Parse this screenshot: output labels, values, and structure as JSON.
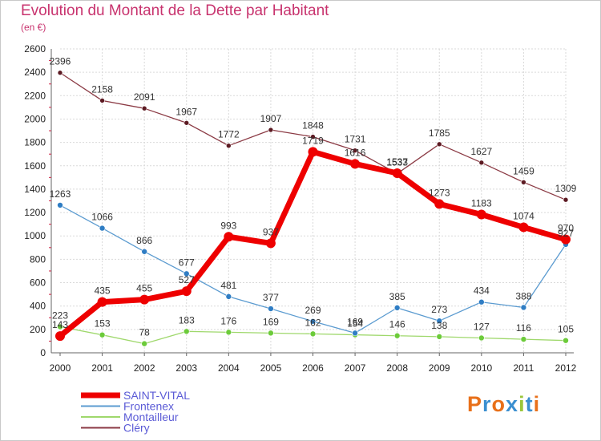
{
  "title": "Evolution du Montant de la Dette par Habitant",
  "unit_label": "(en €)",
  "logo": {
    "text": "Proxiti",
    "letter_colors": [
      "#e8701a",
      "#3b8fd0",
      "#e8701a",
      "#3b8fd0",
      "#9bc63a",
      "#3b8fd0",
      "#e8701a"
    ]
  },
  "colors": {
    "title": "#c8336e",
    "grid": "#d9d9d9",
    "axis": "#666666"
  },
  "chart_data": {
    "type": "line",
    "title": "Evolution du Montant de la Dette par Habitant",
    "ylabel": "(en €)",
    "xlabel": "",
    "x": [
      "2000",
      "2001",
      "2002",
      "2003",
      "2004",
      "2005",
      "2006",
      "2007",
      "2008",
      "2009",
      "2010",
      "2011",
      "2012"
    ],
    "ylim": [
      0,
      2600
    ],
    "yticks": [
      0,
      200,
      400,
      600,
      800,
      1000,
      1200,
      1400,
      1600,
      1800,
      2000,
      2200,
      2400,
      2600
    ],
    "grid": true,
    "legend": "bottom-left",
    "series": [
      {
        "name": "Cléry",
        "color": "#8b3a44",
        "marker": "#5c1a22",
        "width": 1.3,
        "r": 3,
        "values": [
          2396,
          2158,
          2091,
          1967,
          1772,
          1907,
          1848,
          1731,
          1533,
          1785,
          1627,
          1459,
          1309
        ]
      },
      {
        "name": "Montailleur",
        "color": "#9fd86c",
        "marker": "#6ccb3a",
        "width": 1.3,
        "r": 3.5,
        "values": [
          223,
          153,
          78,
          183,
          176,
          169,
          162,
          154,
          146,
          138,
          127,
          116,
          105
        ]
      },
      {
        "name": "Frontenex",
        "color": "#5b9bd0",
        "marker": "#2f7dc4",
        "width": 1.3,
        "r": 3.5,
        "values": [
          1263,
          1066,
          866,
          677,
          481,
          377,
          269,
          169,
          385,
          273,
          434,
          388,
          927
        ]
      },
      {
        "name": "SAINT-VITAL",
        "color": "#ee0000",
        "marker": "#ee0000",
        "width": 7,
        "r": 6,
        "values": [
          143,
          435,
          455,
          527,
          993,
          937,
          1719,
          1616,
          1537,
          1273,
          1183,
          1074,
          970
        ]
      }
    ],
    "legend_order": [
      "SAINT-VITAL",
      "Frontenex",
      "Montailleur",
      "Cléry"
    ]
  }
}
